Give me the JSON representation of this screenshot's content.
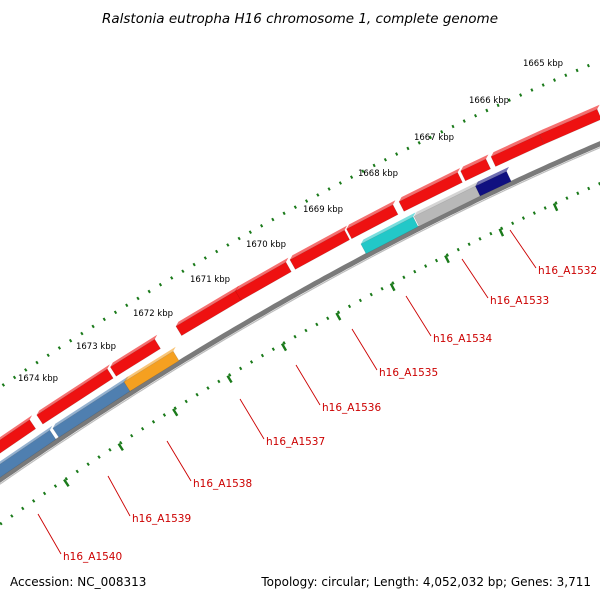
{
  "title": "Ralstonia eutropha H16 chromosome 1, complete genome",
  "footer": {
    "accession": "Accession: NC_008313",
    "stats": "Topology: circular; Length: 4,052,032 bp; Genes: 3,711"
  },
  "kbp_labels": [
    "1665 kbp",
    "1666 kbp",
    "1667 kbp",
    "1668 kbp",
    "1669 kbp",
    "1670 kbp",
    "1671 kbp",
    "1672 kbp",
    "1673 kbp",
    "1674 kbp"
  ],
  "gene_labels": [
    "h16_A1532",
    "h16_A1533",
    "h16_A1534",
    "h16_A1535",
    "h16_A1536",
    "h16_A1537",
    "h16_A1538",
    "h16_A1539",
    "h16_A1540"
  ],
  "colors": {
    "backbone": "#7a7a7a",
    "ticks": "#1a7a1a",
    "red": "#ee1111",
    "steelblue": "#4f7fb0",
    "orange": "#f5a020",
    "cyan": "#22c8c8",
    "silver": "#b8b8b8",
    "navy": "#101080",
    "label": "#cc0000"
  }
}
